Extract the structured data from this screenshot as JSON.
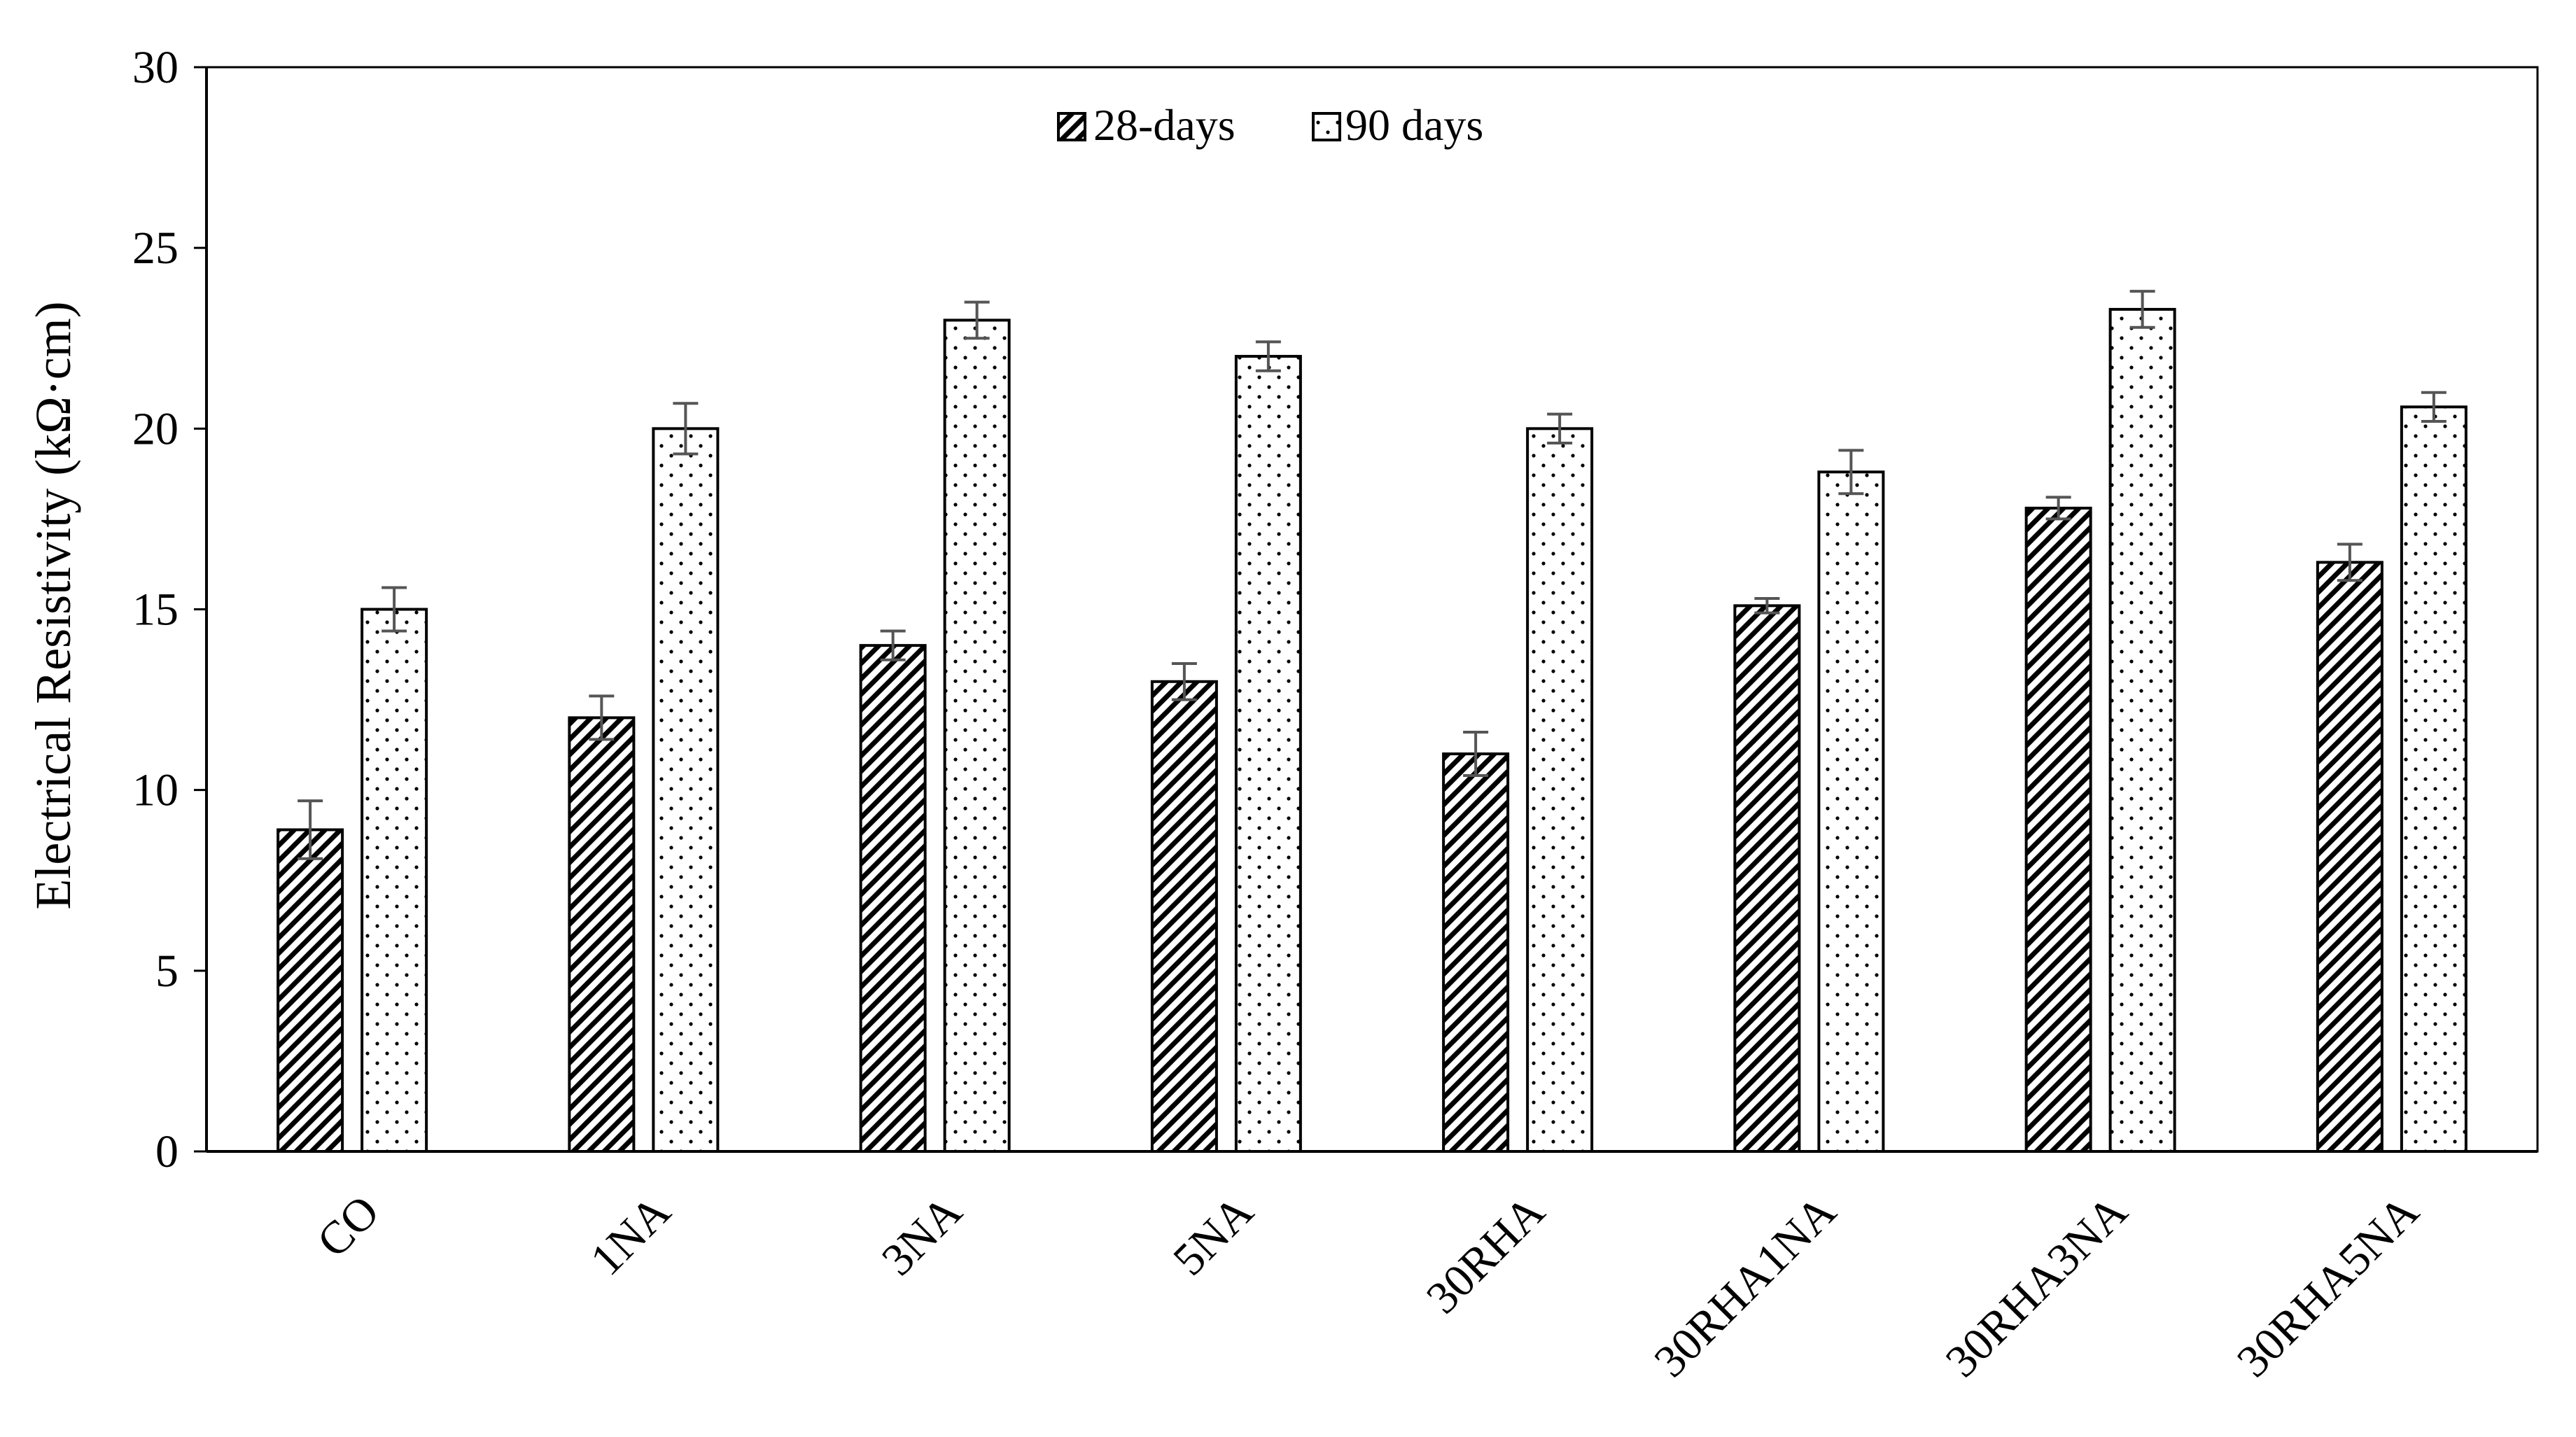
{
  "chart_data": {
    "type": "bar",
    "ylabel": "Electrical Resistivity (kΩ·cm)",
    "xlabel": "",
    "ylim": [
      0,
      30
    ],
    "yticks": [
      "0",
      "5",
      "10",
      "15",
      "20",
      "25",
      "30"
    ],
    "categories": [
      "CO",
      "1NA",
      "3NA",
      "5NA",
      "30RHA",
      "30RHA1NA",
      "30RHA3NA",
      "30RHA5NA"
    ],
    "series": [
      {
        "name": "28-days",
        "pattern": "diagonal-hatch",
        "values": [
          8.9,
          12.0,
          14.0,
          13.0,
          11.0,
          15.1,
          17.8,
          16.3
        ],
        "errors": [
          0.8,
          0.6,
          0.4,
          0.5,
          0.6,
          0.2,
          0.3,
          0.5
        ]
      },
      {
        "name": "90 days",
        "pattern": "dots",
        "values": [
          15.0,
          20.0,
          23.0,
          22.0,
          20.0,
          18.8,
          23.3,
          20.6
        ],
        "errors": [
          0.6,
          0.7,
          0.5,
          0.4,
          0.4,
          0.6,
          0.5,
          0.4
        ]
      }
    ],
    "legend_position": "top-center",
    "grid": false,
    "colors": {
      "bar_fill": "#ffffff",
      "bar_stroke": "#000000",
      "error_bar": "#555555"
    }
  }
}
